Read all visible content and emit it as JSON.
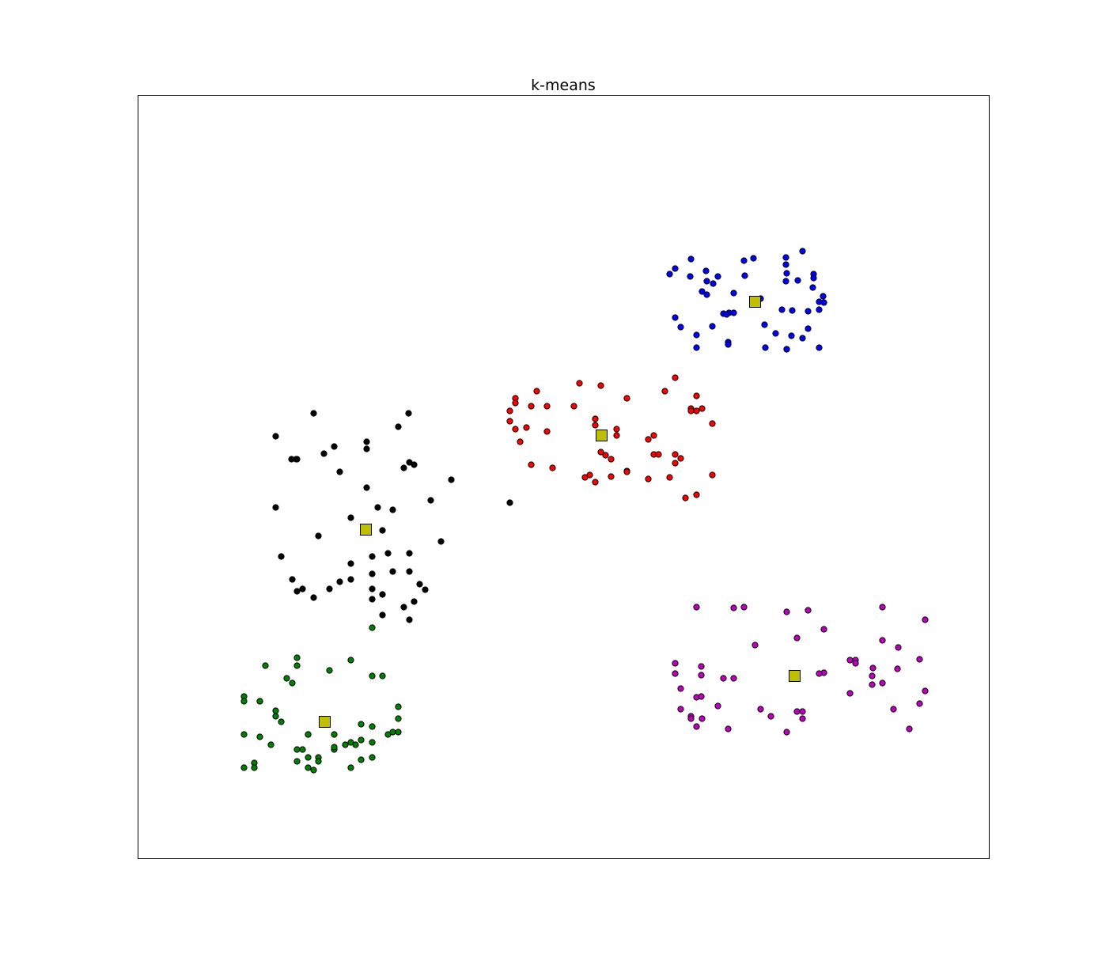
{
  "chart_data": {
    "type": "scatter",
    "title": "k-means",
    "xlabel": "",
    "ylabel": "",
    "xlim": [
      0,
      1076
    ],
    "ylim": [
      0,
      965
    ],
    "grid": false,
    "ticks": false,
    "legend": "none",
    "colors": {
      "blue": "#0000ff",
      "red": "#ff0000",
      "black": "#000000",
      "green": "#008000",
      "magenta": "#bf00bf",
      "centroid": "#bfbf00"
    },
    "series": [
      {
        "color": "blue",
        "points": [
          [
            840,
            768
          ],
          [
            819,
            760
          ],
          [
            778,
            759
          ],
          [
            699,
            758
          ],
          [
            766,
            756
          ],
          [
            819,
            751
          ],
          [
            679,
            746
          ],
          [
            672,
            739
          ],
          [
            718,
            743
          ],
          [
            820,
            740
          ],
          [
            854,
            739
          ],
          [
            698,
            736
          ],
          [
            733,
            736
          ],
          [
            767,
            737
          ],
          [
            719,
            730
          ],
          [
            854,
            734
          ],
          [
            834,
            731
          ],
          [
            819,
            730
          ],
          [
            727,
            727
          ],
          [
            853,
            722
          ],
          [
            713,
            717
          ],
          [
            719,
            713
          ],
          [
            787,
            708
          ],
          [
            753,
            715
          ],
          [
            866,
            711
          ],
          [
            867,
            703
          ],
          [
            861,
            704
          ],
          [
            814,
            694
          ],
          [
            827,
            693
          ],
          [
            861,
            694
          ],
          [
            847,
            692
          ],
          [
            747,
            690
          ],
          [
            740,
            689
          ],
          [
            744,
            688
          ],
          [
            753,
            690
          ],
          [
            679,
            684
          ],
          [
            686,
            672
          ],
          [
            726,
            673
          ],
          [
            806,
            664
          ],
          [
            792,
            675
          ],
          [
            847,
            670
          ],
          [
            826,
            661
          ],
          [
            840,
            658
          ],
          [
            706,
            662
          ],
          [
            746,
            653
          ],
          [
            746,
            650
          ],
          [
            793,
            646
          ],
          [
            820,
            644
          ],
          [
            861,
            646
          ],
          [
            706,
            646
          ],
          [
            820,
            644
          ]
        ]
      },
      {
        "color": "red",
        "points": [
          [
            679,
            608
          ],
          [
            558,
            601
          ],
          [
            585,
            598
          ],
          [
            504,
            591
          ],
          [
            666,
            591
          ],
          [
            477,
            582
          ],
          [
            618,
            582
          ],
          [
            706,
            585
          ],
          [
            477,
            576
          ],
          [
            497,
            572
          ],
          [
            517,
            572
          ],
          [
            551,
            572
          ],
          [
            699,
            569
          ],
          [
            713,
            569
          ],
          [
            706,
            566
          ],
          [
            470,
            566
          ],
          [
            699,
            566
          ],
          [
            578,
            556
          ],
          [
            470,
            553
          ],
          [
            726,
            550
          ],
          [
            578,
            548
          ],
          [
            605,
            543
          ],
          [
            477,
            543
          ],
          [
            491,
            545
          ],
          [
            517,
            540
          ],
          [
            605,
            535
          ],
          [
            652,
            535
          ],
          [
            645,
            530
          ],
          [
            483,
            527
          ],
          [
            585,
            514
          ],
          [
            591,
            510
          ],
          [
            598,
            505
          ],
          [
            652,
            511
          ],
          [
            679,
            511
          ],
          [
            658,
            511
          ],
          [
            686,
            506
          ],
          [
            679,
            500
          ],
          [
            497,
            498
          ],
          [
            524,
            494
          ],
          [
            571,
            485
          ],
          [
            565,
            482
          ],
          [
            618,
            490
          ],
          [
            598,
            483
          ],
          [
            618,
            489
          ],
          [
            645,
            480
          ],
          [
            672,
            482
          ],
          [
            726,
            485
          ],
          [
            578,
            476
          ],
          [
            692,
            456
          ],
          [
            706,
            460
          ]
        ]
      },
      {
        "color": "black",
        "points": [
          [
            222,
            563
          ],
          [
            329,
            546
          ],
          [
            342,
            563
          ],
          [
            174,
            534
          ],
          [
            289,
            527
          ],
          [
            289,
            518
          ],
          [
            248,
            521
          ],
          [
            200,
            505
          ],
          [
            194,
            505
          ],
          [
            235,
            512
          ],
          [
            201,
            505
          ],
          [
            255,
            489
          ],
          [
            349,
            498
          ],
          [
            289,
            469
          ],
          [
            396,
            479
          ],
          [
            336,
            494
          ],
          [
            343,
            501
          ],
          [
            370,
            453
          ],
          [
            322,
            441
          ],
          [
            303,
            444
          ],
          [
            174,
            444
          ],
          [
            269,
            431
          ],
          [
            228,
            408
          ],
          [
            309,
            415
          ],
          [
            383,
            401
          ],
          [
            181,
            382
          ],
          [
            296,
            382
          ],
          [
            343,
            386
          ],
          [
            316,
            386
          ],
          [
            269,
            373
          ],
          [
            296,
            360
          ],
          [
            343,
            363
          ],
          [
            296,
            341
          ],
          [
            255,
            350
          ],
          [
            269,
            353
          ],
          [
            322,
            363
          ],
          [
            356,
            347
          ],
          [
            363,
            340
          ],
          [
            309,
            334
          ],
          [
            242,
            341
          ],
          [
            222,
            330
          ],
          [
            208,
            341
          ],
          [
            195,
            353
          ],
          [
            201,
            338
          ],
          [
            349,
            325
          ],
          [
            336,
            318
          ],
          [
            309,
            308
          ],
          [
            296,
            328
          ],
          [
            343,
            302
          ],
          [
            470,
            450
          ]
        ]
      },
      {
        "color": "green",
        "points": [
          [
            296,
            292
          ],
          [
            201,
            254
          ],
          [
            242,
            238
          ],
          [
            269,
            251
          ],
          [
            161,
            244
          ],
          [
            201,
            244
          ],
          [
            309,
            231
          ],
          [
            296,
            231
          ],
          [
            188,
            228
          ],
          [
            195,
            222
          ],
          [
            134,
            205
          ],
          [
            154,
            199
          ],
          [
            174,
            187
          ],
          [
            134,
            199
          ],
          [
            329,
            192
          ],
          [
            329,
            177
          ],
          [
            174,
            180
          ],
          [
            181,
            173
          ],
          [
            282,
            170
          ],
          [
            296,
            167
          ],
          [
            248,
            157
          ],
          [
            215,
            157
          ],
          [
            154,
            199
          ],
          [
            329,
            160
          ],
          [
            322,
            160
          ],
          [
            316,
            157
          ],
          [
            134,
            157
          ],
          [
            154,
            154
          ],
          [
            269,
            147
          ],
          [
            215,
            157
          ],
          [
            282,
            150
          ],
          [
            168,
            144
          ],
          [
            296,
            147
          ],
          [
            248,
            138
          ],
          [
            201,
            138
          ],
          [
            208,
            138
          ],
          [
            262,
            144
          ],
          [
            275,
            144
          ],
          [
            248,
            141
          ],
          [
            215,
            128
          ],
          [
            228,
            128
          ],
          [
            296,
            128
          ],
          [
            282,
            125
          ],
          [
            228,
            123
          ],
          [
            201,
            123
          ],
          [
            147,
            121
          ],
          [
            215,
            115
          ],
          [
            269,
            115
          ],
          [
            147,
            115
          ],
          [
            222,
            112
          ],
          [
            134,
            115
          ]
        ]
      },
      {
        "color": "magenta",
        "points": [
          [
            706,
            318
          ],
          [
            753,
            317
          ],
          [
            766,
            318
          ],
          [
            820,
            312
          ],
          [
            847,
            314
          ],
          [
            941,
            318
          ],
          [
            995,
            302
          ],
          [
            833,
            279
          ],
          [
            867,
            290
          ],
          [
            941,
            276
          ],
          [
            780,
            270
          ],
          [
            961,
            267
          ],
          [
            988,
            252
          ],
          [
            907,
            251
          ],
          [
            679,
            247
          ],
          [
            712,
            243
          ],
          [
            960,
            240
          ],
          [
            929,
            241
          ],
          [
            907,
            247
          ],
          [
            867,
            235
          ],
          [
            861,
            234
          ],
          [
            900,
            251
          ],
          [
            740,
            228
          ],
          [
            753,
            228
          ],
          [
            679,
            234
          ],
          [
            712,
            232
          ],
          [
            928,
            231
          ],
          [
            941,
            222
          ],
          [
            928,
            220
          ],
          [
            995,
            212
          ],
          [
            686,
            215
          ],
          [
            706,
            204
          ],
          [
            900,
            209
          ],
          [
            712,
            205
          ],
          [
            988,
            196
          ],
          [
            733,
            193
          ],
          [
            686,
            189
          ],
          [
            787,
            189
          ],
          [
            955,
            189
          ],
          [
            833,
            186
          ],
          [
            800,
            180
          ],
          [
            840,
            177
          ],
          [
            699,
            180
          ],
          [
            713,
            177
          ],
          [
            746,
            164
          ],
          [
            820,
            160
          ],
          [
            975,
            164
          ],
          [
            706,
            167
          ],
          [
            699,
            177
          ],
          [
            840,
            186
          ]
        ]
      }
    ],
    "centroids": [
      [
        780,
        704
      ],
      [
        586,
        535
      ],
      [
        288,
        416
      ],
      [
        236,
        173
      ],
      [
        830,
        231
      ]
    ]
  }
}
